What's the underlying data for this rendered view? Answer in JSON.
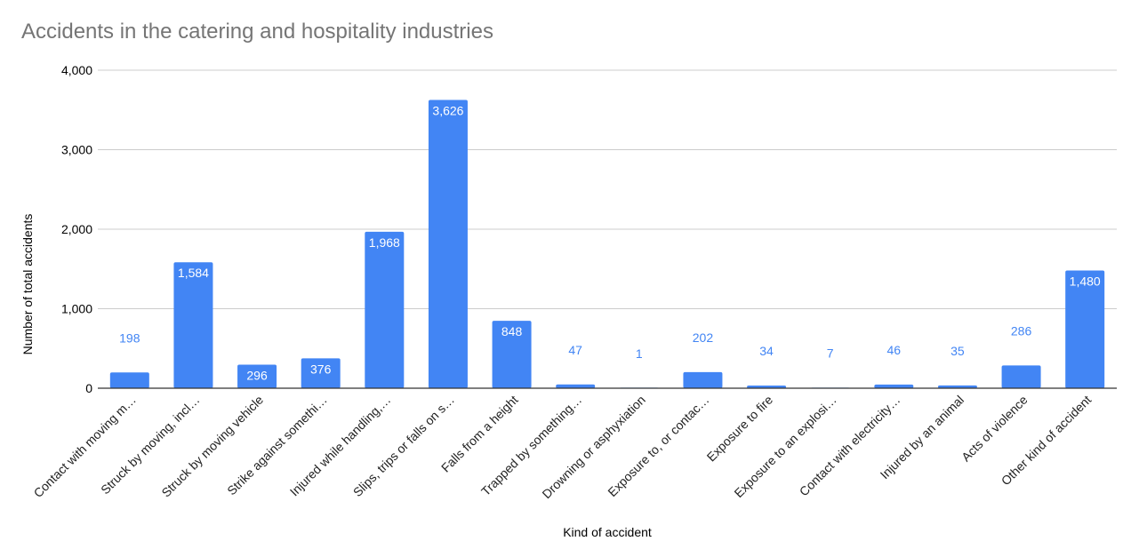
{
  "chart_data": {
    "type": "bar",
    "title": "Accidents in the catering and hospitality industries",
    "xlabel": "Kind of accident",
    "ylabel": "Number of total accidents",
    "ylim": [
      0,
      4000
    ],
    "yticks": [
      0,
      1000,
      2000,
      3000,
      4000
    ],
    "ytick_labels": [
      "0",
      "1,000",
      "2,000",
      "3,000",
      "4,000"
    ],
    "grid": true,
    "legend": "none",
    "bar_color": "#4285f4",
    "categories": [
      "Contact with moving m…",
      "Struck by moving, incl…",
      "Struck by moving vehicle",
      "Strike against somethi…",
      "Injured while handling,…",
      "Slips, trips or falls on s…",
      "Falls from a height",
      "Trapped by something…",
      "Drowning or asphyxiation",
      "Exposure to, or contac…",
      "Exposure to fire",
      "Exposure to an explosi…",
      "Contact with electricity…",
      "Injured by an animal",
      "Acts of violence",
      "Other kind of accident"
    ],
    "values": [
      198,
      1584,
      296,
      376,
      1968,
      3626,
      848,
      47,
      1,
      202,
      34,
      7,
      46,
      35,
      286,
      1480
    ],
    "data_labels": [
      "198",
      "1,584",
      "296",
      "376",
      "1,968",
      "3,626",
      "848",
      "47",
      "1",
      "202",
      "34",
      "7",
      "46",
      "35",
      "286",
      "1,480"
    ]
  }
}
